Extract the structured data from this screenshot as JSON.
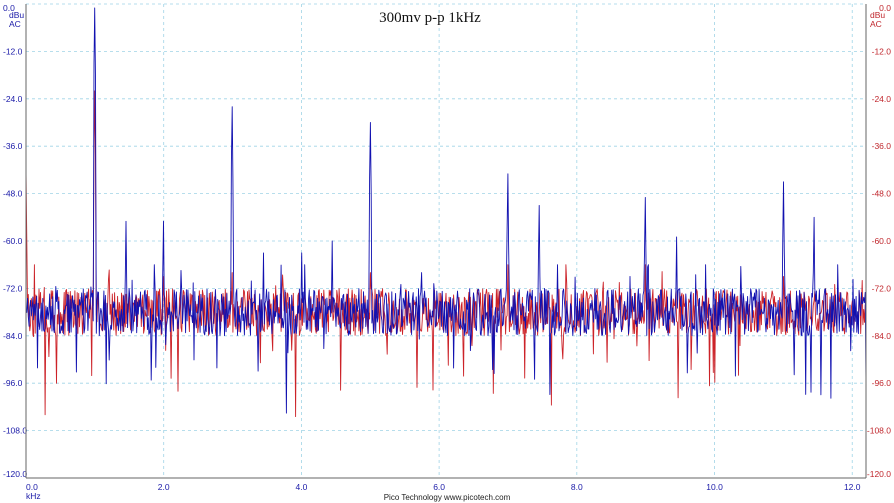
{
  "chart_data": {
    "type": "line",
    "title": "300mv  p-p  1kHz",
    "footer": "Pico Technology   www.picotech.com",
    "x_unit": "kHz",
    "xlim": [
      0,
      12.2
    ],
    "x_ticks": [
      "0.0",
      "2.0",
      "4.0",
      "6.0",
      "8.0",
      "10.0",
      "12.0"
    ],
    "x_tick_values": [
      0,
      2,
      4,
      6,
      8,
      10,
      12
    ],
    "ylim": [
      -120,
      0
    ],
    "y_ticks": [
      "0.0",
      "-12.0",
      "-24.0",
      "-36.0",
      "-48.0",
      "-60.0",
      "-72.0",
      "-84.0",
      "-96.0",
      "-108.0",
      "-120.0"
    ],
    "y_tick_values": [
      0,
      -12,
      -24,
      -36,
      -48,
      -60,
      -72,
      -84,
      -96,
      -108,
      -120
    ],
    "left_axis": {
      "unit": "dBu",
      "coupling": "AC",
      "color": "#1a1aa8"
    },
    "right_axis": {
      "unit": "dBu",
      "coupling": "AC",
      "color": "#c0262c"
    },
    "grid": true,
    "noise_floor_db": -78,
    "series": [
      {
        "color": "#1111b0",
        "peaks": [
          {
            "x": 1.0,
            "y": -1
          },
          {
            "x": 1.45,
            "y": -55
          },
          {
            "x": 2.0,
            "y": -55
          },
          {
            "x": 3.0,
            "y": -26
          },
          {
            "x": 3.45,
            "y": -63
          },
          {
            "x": 4.0,
            "y": -63
          },
          {
            "x": 4.45,
            "y": -60
          },
          {
            "x": 5.0,
            "y": -30
          },
          {
            "x": 5.45,
            "y": -71
          },
          {
            "x": 5.75,
            "y": -68
          },
          {
            "x": 7.0,
            "y": -43
          },
          {
            "x": 7.45,
            "y": -51
          },
          {
            "x": 9.0,
            "y": -49
          },
          {
            "x": 9.45,
            "y": -59
          },
          {
            "x": 11.0,
            "y": -45
          },
          {
            "x": 11.45,
            "y": -54
          }
        ]
      },
      {
        "color": "#cc2228",
        "peaks": [
          {
            "x": 0.0,
            "y": -42
          },
          {
            "x": 1.0,
            "y": -22
          },
          {
            "x": 2.0,
            "y": -69
          },
          {
            "x": 3.0,
            "y": -68
          },
          {
            "x": 5.0,
            "y": -68
          },
          {
            "x": 7.0,
            "y": -66
          },
          {
            "x": 9.0,
            "y": -66
          },
          {
            "x": 12.15,
            "y": -70
          }
        ]
      }
    ]
  }
}
